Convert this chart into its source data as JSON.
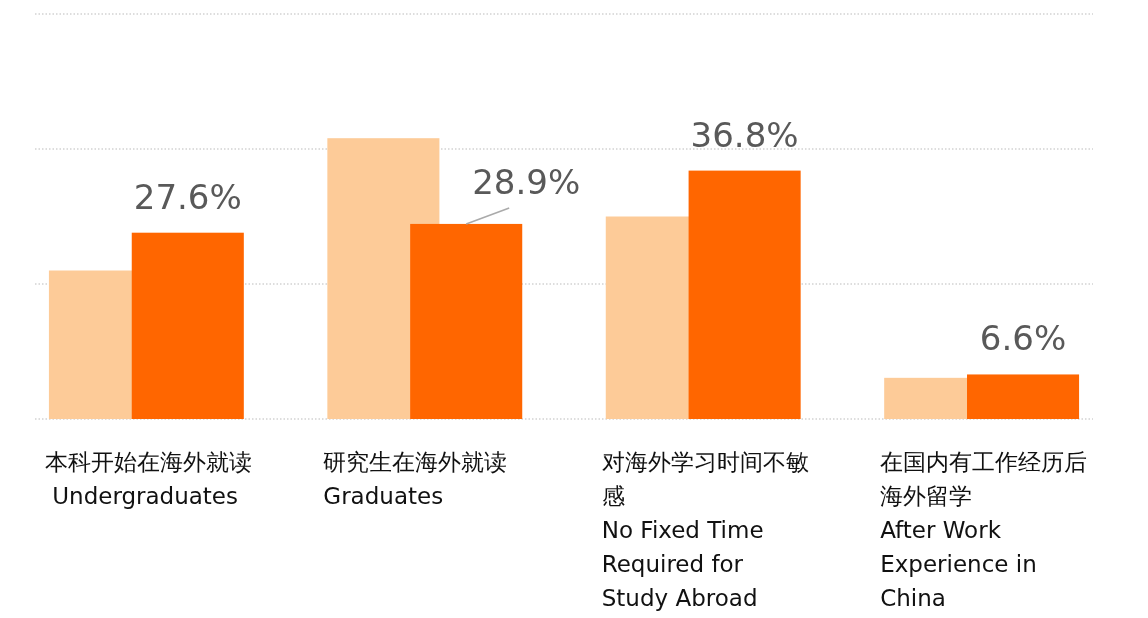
{
  "chart_data": {
    "type": "bar",
    "categories": [
      "本科开始在海外就读\n Undergraduates",
      "研究生在海外就读\nGraduates",
      "对海外学习时间不敏感\nNo Fixed Time Required for Study Abroad",
      "在国内有工作经历后海外留学\nAfter Work Experience in China"
    ],
    "series": [
      {
        "color": "#fdcb98",
        "values": [
          22.0,
          41.6,
          30.0,
          6.1
        ]
      },
      {
        "color": "#ff6600",
        "values": [
          27.6,
          28.9,
          36.8,
          6.6
        ],
        "value_labels": [
          "27.6%",
          "28.9%",
          "36.8%",
          "6.6%"
        ]
      }
    ],
    "ylim": [
      0,
      60
    ],
    "yticks": [
      {
        "value": 0,
        "label": null
      },
      {
        "value": 20,
        "label": null
      },
      {
        "value": 40,
        "label": null
      },
      {
        "value": 60,
        "label": null
      }
    ],
    "grid": "y"
  }
}
